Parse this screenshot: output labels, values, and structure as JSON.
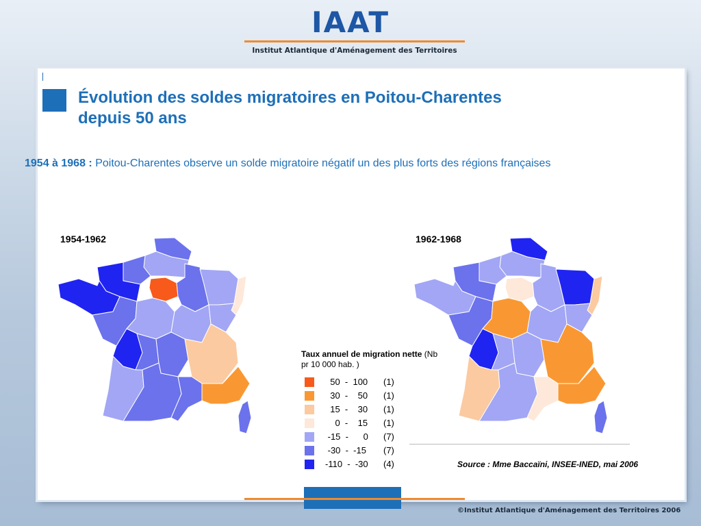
{
  "header": {
    "logo": "IAAT",
    "subtitle": "Institut Atlantique d'Aménagement des Territoires"
  },
  "slide": {
    "title_line1": "Évolution des soldes migratoires en Poitou-Charentes",
    "title_line2": "depuis 50 ans",
    "subtitle_bold": "1954 à 1968 :",
    "subtitle_text": " Poitou-Charentes observe un solde migratoire négatif un des plus forts des régions françaises"
  },
  "maps": {
    "left_label": "1954-1962",
    "right_label": "1962-1968"
  },
  "legend": {
    "title_bold": "Taux annuel de migration nette",
    "title_normal": " (Nb pr 10 000 hab. )",
    "rows": [
      {
        "range": "  50  -  100",
        "count": "(1)",
        "color": "#f75a1a"
      },
      {
        "range": "  30  -    50",
        "count": "(1)",
        "color": "#f99832"
      },
      {
        "range": "  15  -    30",
        "count": "(1)",
        "color": "#fbcaa0"
      },
      {
        "range": "    0  -    15",
        "count": "(1)",
        "color": "#fde8da"
      },
      {
        "range": " -15  -      0",
        "count": "(7)",
        "color": "#a2a6f4"
      },
      {
        "range": " -30  -  -15",
        "count": "(7)",
        "color": "#6b72ec"
      },
      {
        "range": "-110  -  -30",
        "count": "(4)",
        "color": "#2024f0"
      }
    ]
  },
  "source": "Source : Mme Baccaïni, INSEE-INED, mai 2006",
  "copyright": "©Institut Atlantique d'Aménagement des Territoires 2006"
}
